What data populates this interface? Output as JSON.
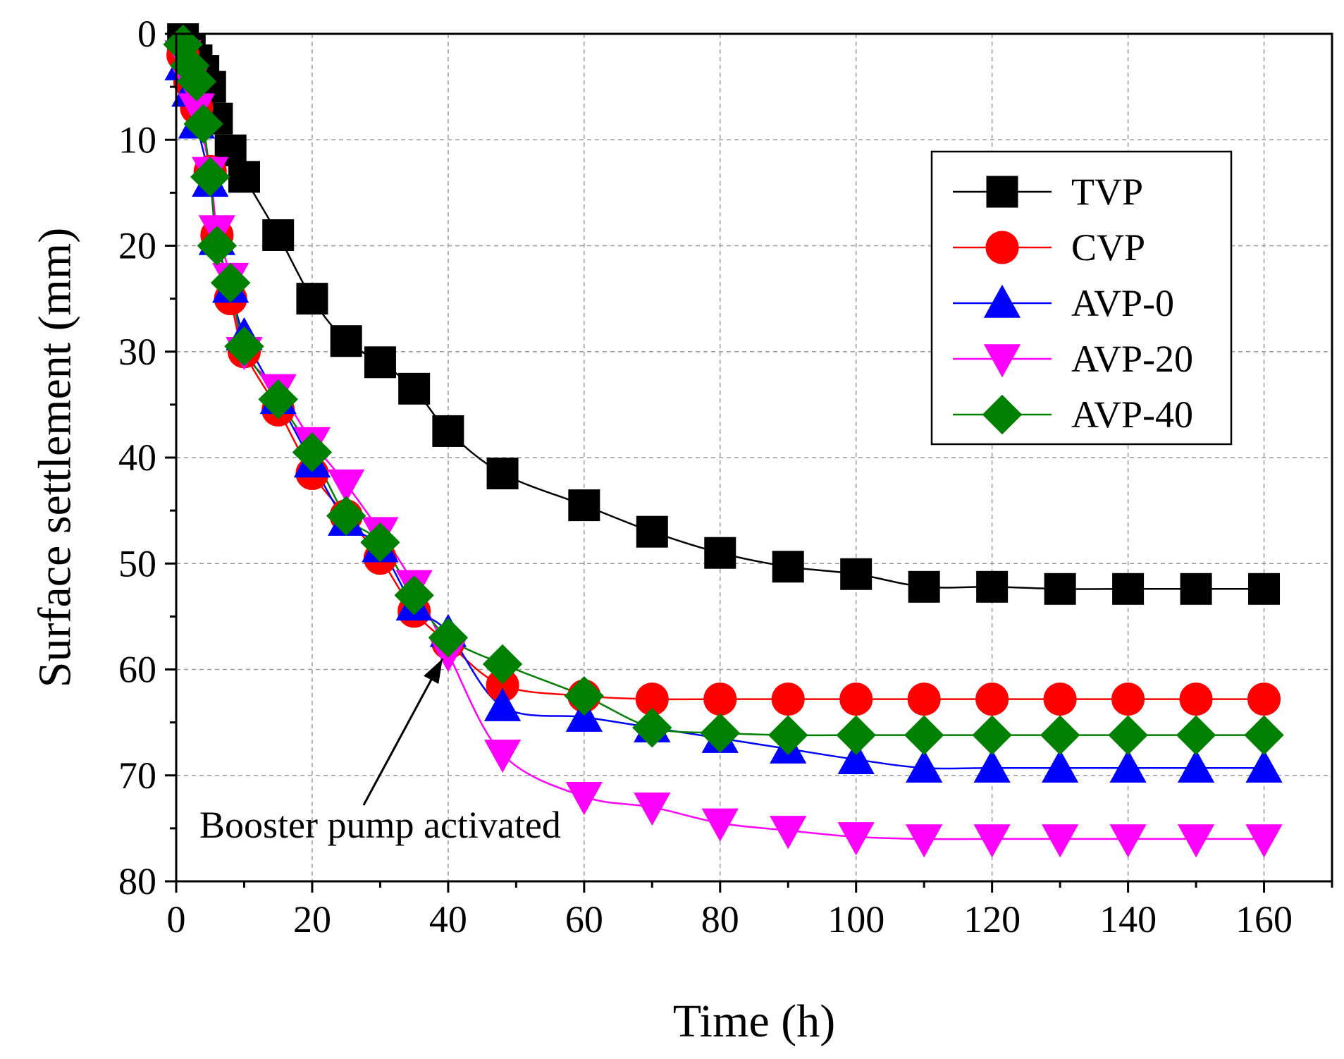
{
  "chart_data": {
    "type": "line",
    "title": "",
    "xlabel": "Time (h)",
    "ylabel": "Surface settlement (mm)",
    "xlim": [
      0,
      170
    ],
    "ylim": [
      0,
      80
    ],
    "y_inverted": true,
    "xticks": [
      0,
      20,
      40,
      60,
      80,
      100,
      120,
      140,
      160
    ],
    "yticks": [
      0,
      10,
      20,
      30,
      40,
      50,
      60,
      70,
      80
    ],
    "grid": true,
    "legend_position": "top-right",
    "series": [
      {
        "name": "TVP",
        "color": "#000000",
        "marker": "square",
        "x": [
          1,
          2,
          3,
          4,
          5,
          6,
          8,
          10,
          15,
          20,
          25,
          30,
          35,
          40,
          48,
          60,
          70,
          80,
          90,
          100,
          110,
          120,
          130,
          140,
          150,
          160
        ],
        "y": [
          0.5,
          1.5,
          2.5,
          3.5,
          5.0,
          8.0,
          11.0,
          13.5,
          19.0,
          25.0,
          29.0,
          31.0,
          33.5,
          37.5,
          41.5,
          44.5,
          47.0,
          49.0,
          50.3,
          51.0,
          52.2,
          52.2,
          52.4,
          52.4,
          52.4,
          52.4
        ]
      },
      {
        "name": "CVP",
        "color": "#ff0000",
        "marker": "circle",
        "x": [
          1,
          2,
          3,
          5,
          6,
          8,
          10,
          15,
          20,
          25,
          30,
          35,
          40,
          48,
          60,
          70,
          80,
          90,
          100,
          110,
          120,
          130,
          140,
          150,
          160
        ],
        "y": [
          2.0,
          4.5,
          7.0,
          13.0,
          19.0,
          25.0,
          30.0,
          35.5,
          41.5,
          45.5,
          49.5,
          54.5,
          57.5,
          61.5,
          62.5,
          62.8,
          62.8,
          62.8,
          62.8,
          62.8,
          62.8,
          62.8,
          62.8,
          62.8,
          62.8
        ]
      },
      {
        "name": "AVP-0",
        "color": "#0000ff",
        "marker": "triangle-up",
        "x": [
          1,
          2,
          3,
          5,
          6,
          8,
          10,
          15,
          20,
          25,
          30,
          35,
          40,
          48,
          60,
          70,
          80,
          90,
          100,
          110,
          120,
          130,
          140,
          150,
          160
        ],
        "y": [
          3.0,
          5.5,
          8.5,
          14.0,
          19.5,
          24.0,
          28.5,
          34.5,
          40.5,
          46.0,
          48.5,
          54.0,
          56.5,
          63.5,
          64.5,
          65.5,
          66.5,
          67.5,
          68.5,
          69.3,
          69.3,
          69.3,
          69.3,
          69.3,
          69.3
        ]
      },
      {
        "name": "AVP-20",
        "color": "#ff00ff",
        "marker": "triangle-down",
        "x": [
          1,
          2,
          3,
          5,
          6,
          8,
          10,
          15,
          20,
          25,
          30,
          35,
          40,
          48,
          60,
          70,
          80,
          90,
          100,
          110,
          120,
          130,
          140,
          150,
          160
        ],
        "y": [
          2.0,
          4.5,
          7.0,
          13.0,
          18.5,
          23.0,
          30.0,
          33.5,
          38.5,
          42.5,
          47.0,
          52.0,
          58.5,
          68.0,
          72.0,
          73.0,
          74.5,
          75.2,
          75.8,
          76.0,
          76.0,
          76.0,
          76.0,
          76.0,
          76.0
        ]
      },
      {
        "name": "AVP-40",
        "color": "#008000",
        "marker": "diamond",
        "x": [
          1,
          2,
          3,
          4,
          5,
          6,
          8,
          10,
          15,
          20,
          25,
          30,
          35,
          40,
          48,
          60,
          70,
          80,
          90,
          100,
          110,
          120,
          130,
          140,
          150,
          160
        ],
        "y": [
          1.0,
          3.0,
          4.5,
          8.5,
          13.5,
          20.0,
          23.5,
          29.5,
          34.5,
          39.5,
          45.5,
          48.0,
          53.0,
          57.0,
          59.5,
          62.5,
          65.5,
          66.0,
          66.2,
          66.2,
          66.2,
          66.2,
          66.2,
          66.2,
          66.2,
          66.2
        ]
      }
    ],
    "annotations": [
      {
        "text": "Booster pump activated",
        "arrow_to": [
          40,
          57
        ]
      }
    ]
  }
}
